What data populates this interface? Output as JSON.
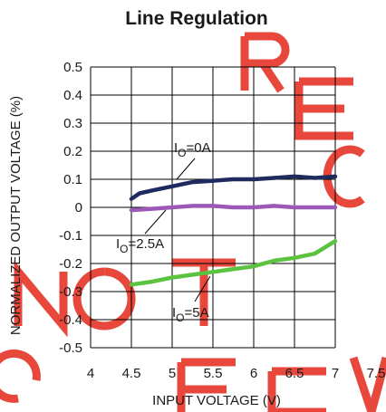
{
  "watermark": {
    "text": "NOT RECOMMENDED",
    "color": "#e8473c"
  },
  "chart_data": {
    "type": "line",
    "title": "Line Regulation",
    "xlabel": "INPUT VOLTAGE (V)",
    "ylabel": "NORMALIZED OUTPUT VOLTAGE (%)",
    "xlim": [
      4,
      7.5
    ],
    "ylim": [
      -0.5,
      0.5
    ],
    "xticks": [
      "4",
      "4.5",
      "5",
      "5.5",
      "6",
      "6.5",
      "7",
      "7.5"
    ],
    "yticks": [
      "0.5",
      "0.4",
      "0.3",
      "0.2",
      "0.1",
      "0",
      "-0.1",
      "-0.2",
      "-0.3",
      "-0.4",
      "-0.5"
    ],
    "grid": true,
    "series": [
      {
        "name": "IO=0A",
        "label_main": "I",
        "label_sub": "O",
        "label_rest": "=0A",
        "color": "#1f2a5e",
        "x": [
          4.5,
          4.6,
          4.75,
          5.0,
          5.25,
          5.5,
          5.75,
          6.0,
          6.25,
          6.5,
          6.75,
          7.0
        ],
        "y": [
          0.03,
          0.05,
          0.06,
          0.075,
          0.09,
          0.095,
          0.1,
          0.1,
          0.105,
          0.11,
          0.105,
          0.11
        ]
      },
      {
        "name": "IO=2.5A",
        "label_main": "I",
        "label_sub": "O",
        "label_rest": "=2.5A",
        "color": "#9b59b6",
        "x": [
          4.5,
          4.75,
          5.0,
          5.25,
          5.5,
          5.75,
          6.0,
          6.25,
          6.5,
          6.75,
          7.0
        ],
        "y": [
          -0.01,
          -0.005,
          0.0,
          0.005,
          0.005,
          0.0,
          0.0,
          0.005,
          0.0,
          0.0,
          0.0
        ]
      },
      {
        "name": "IO=5A",
        "label_main": "I",
        "label_sub": "O",
        "label_rest": "=5A",
        "color": "#5cc341",
        "x": [
          4.5,
          4.75,
          5.0,
          5.25,
          5.5,
          5.75,
          6.0,
          6.25,
          6.5,
          6.75,
          7.0
        ],
        "y": [
          -0.275,
          -0.265,
          -0.25,
          -0.24,
          -0.23,
          -0.22,
          -0.21,
          -0.19,
          -0.18,
          -0.165,
          -0.12
        ]
      }
    ]
  }
}
